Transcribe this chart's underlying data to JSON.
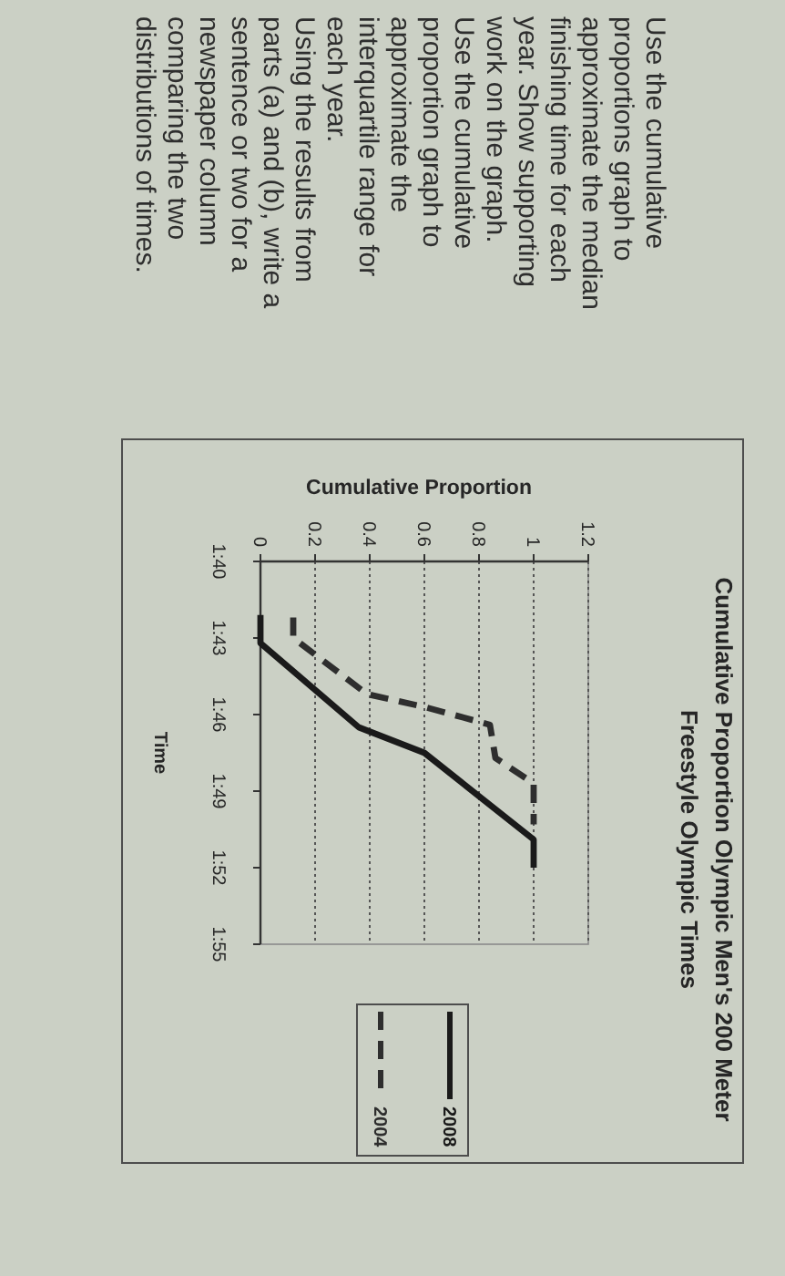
{
  "chart_data": {
    "type": "line",
    "title": "Cumulative Proportion Olympic Men's 200 Meter Freestyle Olympic Times",
    "xlabel": "Cumulative Proportion",
    "ylabel": "Time",
    "series": [
      {
        "name": "2008",
        "color": "#1a1a1a",
        "line_style": "solid",
        "x": [
          0,
          0,
          0.36,
          0.6,
          1,
          1
        ],
        "values": [
          102.1,
          103.2,
          106.5,
          107.5,
          110.9,
          112
        ]
      },
      {
        "name": "2004",
        "color": "#2e2e2e",
        "line_style": "dashed",
        "x": [
          0.12,
          0.12,
          0.39,
          0.6,
          0.84,
          0.86,
          1,
          1
        ],
        "values": [
          102.2,
          103,
          105.2,
          105.7,
          106.4,
          107.7,
          108.7,
          110.3
        ]
      }
    ],
    "xlim": [
      0,
      1.2
    ],
    "xticks": [
      0,
      0.2,
      0.4,
      0.6,
      0.8,
      1,
      1.2
    ],
    "ylim": [
      115,
      100
    ],
    "yticks": [
      {
        "value": 100,
        "label": "1:40"
      },
      {
        "value": 103,
        "label": "1:43"
      },
      {
        "value": 106,
        "label": "1:46"
      },
      {
        "value": 109,
        "label": "1:49"
      },
      {
        "value": 112,
        "label": "1:52"
      },
      {
        "value": 115,
        "label": "1:55"
      }
    ],
    "grid": "x",
    "legend": "bottom",
    "annotations": [
      "Use the cumulative proportions graph to approximate the median finishing time for each year. Show supporting work on the graph.",
      "Use the cumulative proportion graph to approximate the interquartile range for each year.",
      "Using the results from parts (a) and (b), write a sentence or two for a newspaper column comparing the two distributions of times."
    ]
  }
}
